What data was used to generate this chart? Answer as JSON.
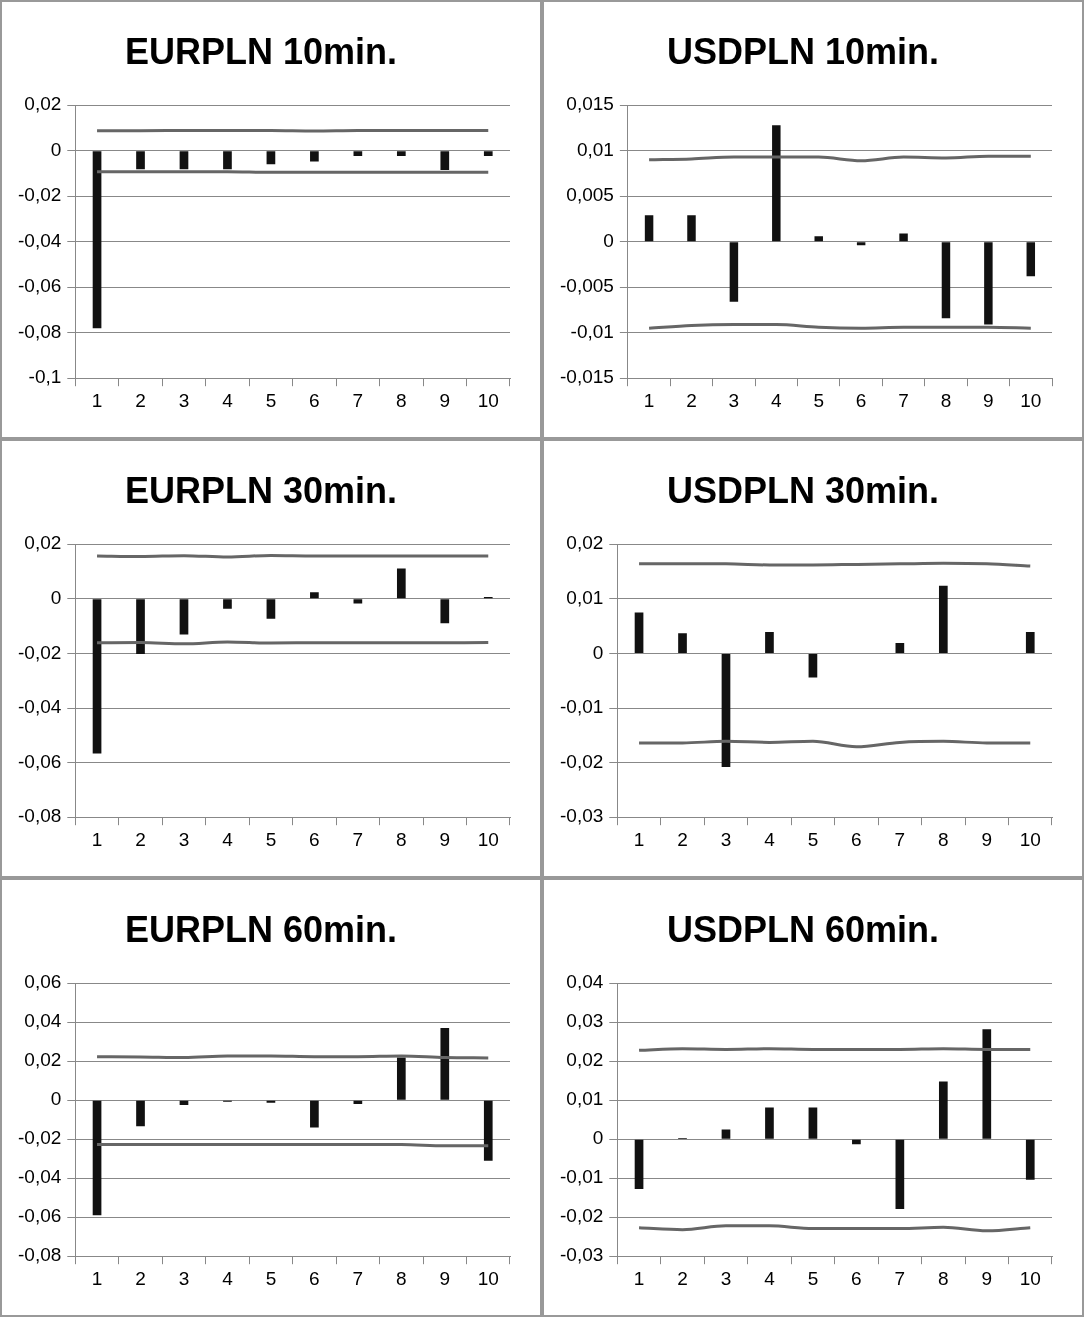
{
  "chart_data": [
    {
      "type": "bar",
      "title": "EURPLN 10min.",
      "categories": [
        "1",
        "2",
        "3",
        "4",
        "5",
        "6",
        "7",
        "8",
        "9",
        "10"
      ],
      "ylim": [
        -0.1,
        0.02
      ],
      "yticks": [
        {
          "value": -0.1,
          "label": "-0,1"
        },
        {
          "value": -0.08,
          "label": "-0,08"
        },
        {
          "value": -0.06,
          "label": "-0,06"
        },
        {
          "value": -0.04,
          "label": "-0,04"
        },
        {
          "value": -0.02,
          "label": "-0,02"
        },
        {
          "value": 0,
          "label": "0"
        },
        {
          "value": 0.02,
          "label": "0,02"
        }
      ],
      "grid": "y",
      "legend": false,
      "series": [
        {
          "color": "#111111",
          "values": [
            -0.078,
            -0.0082,
            -0.0082,
            -0.0082,
            -0.006,
            -0.0048,
            -0.0023,
            -0.0023,
            -0.0085,
            -0.0023
          ]
        },
        {
          "type": "line",
          "color": "#666666",
          "values": [
            0.0088,
            0.0088,
            0.0089,
            0.0089,
            0.0089,
            0.0087,
            0.0089,
            0.0089,
            0.0089,
            0.0089
          ]
        },
        {
          "type": "line",
          "color": "#666666",
          "values": [
            -0.0093,
            -0.0093,
            -0.0093,
            -0.0093,
            -0.0095,
            -0.0095,
            -0.0095,
            -0.0095,
            -0.0095,
            -0.0095
          ]
        }
      ]
    },
    {
      "type": "bar",
      "title": "USDPLN 10min.",
      "categories": [
        "1",
        "2",
        "3",
        "4",
        "5",
        "6",
        "7",
        "8",
        "9",
        "10"
      ],
      "ylim": [
        -0.015,
        0.015
      ],
      "yticks": [
        {
          "value": -0.015,
          "label": "-0,015"
        },
        {
          "value": -0.01,
          "label": "-0,01"
        },
        {
          "value": -0.005,
          "label": "-0,005"
        },
        {
          "value": 0,
          "label": "0"
        },
        {
          "value": 0.005,
          "label": "0,005"
        },
        {
          "value": 0.01,
          "label": "0,01"
        },
        {
          "value": 0.015,
          "label": "0,015"
        }
      ],
      "grid": "y",
      "legend": false,
      "series": [
        {
          "color": "#111111",
          "values": [
            0.0029,
            0.0029,
            -0.0066,
            0.0128,
            0.0006,
            -0.0004,
            0.0009,
            -0.0084,
            -0.0091,
            -0.0038
          ]
        },
        {
          "type": "line",
          "color": "#666666",
          "values": [
            0.009,
            0.0091,
            0.0093,
            0.0093,
            0.0093,
            0.0089,
            0.0093,
            0.0092,
            0.0094,
            0.0094
          ]
        },
        {
          "type": "line",
          "color": "#666666",
          "values": [
            -0.0095,
            -0.0092,
            -0.0091,
            -0.0091,
            -0.0094,
            -0.0095,
            -0.0094,
            -0.0094,
            -0.0094,
            -0.0095
          ]
        }
      ]
    },
    {
      "type": "bar",
      "title": "EURPLN 30min.",
      "categories": [
        "1",
        "2",
        "3",
        "4",
        "5",
        "6",
        "7",
        "8",
        "9",
        "10"
      ],
      "ylim": [
        -0.08,
        0.02
      ],
      "yticks": [
        {
          "value": -0.08,
          "label": "-0,08"
        },
        {
          "value": -0.06,
          "label": "-0,06"
        },
        {
          "value": -0.04,
          "label": "-0,04"
        },
        {
          "value": -0.02,
          "label": "-0,02"
        },
        {
          "value": 0,
          "label": "0"
        },
        {
          "value": 0.02,
          "label": "0,02"
        }
      ],
      "grid": "y",
      "legend": false,
      "series": [
        {
          "color": "#111111",
          "values": [
            -0.0567,
            -0.0202,
            -0.0131,
            -0.0036,
            -0.0073,
            0.0024,
            -0.0017,
            0.0111,
            -0.009,
            0.0007
          ]
        },
        {
          "type": "line",
          "color": "#666666",
          "values": [
            0.0157,
            0.0155,
            0.0158,
            0.0153,
            0.0159,
            0.0157,
            0.0157,
            0.0157,
            0.0157,
            0.0157
          ]
        },
        {
          "type": "line",
          "color": "#666666",
          "values": [
            -0.0161,
            -0.016,
            -0.0165,
            -0.0158,
            -0.0162,
            -0.0161,
            -0.0161,
            -0.0161,
            -0.0161,
            -0.016
          ]
        }
      ]
    },
    {
      "type": "bar",
      "title": "USDPLN 30min.",
      "categories": [
        "1",
        "2",
        "3",
        "4",
        "5",
        "6",
        "7",
        "8",
        "9",
        "10"
      ],
      "ylim": [
        -0.03,
        0.02
      ],
      "yticks": [
        {
          "value": -0.03,
          "label": "-0,03"
        },
        {
          "value": -0.02,
          "label": "-0,02"
        },
        {
          "value": -0.01,
          "label": "-0,01"
        },
        {
          "value": 0,
          "label": "0"
        },
        {
          "value": 0.01,
          "label": "0,01"
        },
        {
          "value": 0.02,
          "label": "0,02"
        }
      ],
      "grid": "y",
      "legend": false,
      "series": [
        {
          "color": "#111111",
          "values": [
            0.0075,
            0.0037,
            -0.0208,
            0.0039,
            -0.0044,
            0,
            0.0019,
            0.0124,
            0,
            0.0039
          ]
        },
        {
          "type": "line",
          "color": "#666666",
          "values": [
            0.0164,
            0.0164,
            0.0164,
            0.0162,
            0.0162,
            0.0163,
            0.0164,
            0.0165,
            0.0164,
            0.016
          ]
        },
        {
          "type": "line",
          "color": "#666666",
          "values": [
            -0.0164,
            -0.0164,
            -0.0161,
            -0.0163,
            -0.0161,
            -0.0171,
            -0.0163,
            -0.0161,
            -0.0164,
            -0.0164
          ]
        }
      ]
    },
    {
      "type": "bar",
      "title": "EURPLN 60min.",
      "categories": [
        "1",
        "2",
        "3",
        "4",
        "5",
        "6",
        "7",
        "8",
        "9",
        "10"
      ],
      "ylim": [
        -0.08,
        0.06
      ],
      "yticks": [
        {
          "value": -0.08,
          "label": "-0,08"
        },
        {
          "value": -0.06,
          "label": "-0,06"
        },
        {
          "value": -0.04,
          "label": "-0,04"
        },
        {
          "value": -0.02,
          "label": "-0,02"
        },
        {
          "value": 0,
          "label": "0"
        },
        {
          "value": 0.02,
          "label": "0,02"
        },
        {
          "value": 0.04,
          "label": "0,04"
        },
        {
          "value": 0.06,
          "label": "0,06"
        }
      ],
      "grid": "y",
      "legend": false,
      "series": [
        {
          "color": "#111111",
          "values": [
            -0.059,
            -0.0133,
            -0.0025,
            -0.0008,
            -0.0013,
            -0.014,
            -0.0019,
            0.0219,
            0.037,
            -0.031
          ]
        },
        {
          "type": "line",
          "color": "#666666",
          "values": [
            0.0223,
            0.0222,
            0.0219,
            0.0227,
            0.0227,
            0.0223,
            0.0223,
            0.0227,
            0.0219,
            0.0217
          ]
        },
        {
          "type": "line",
          "color": "#666666",
          "values": [
            -0.0227,
            -0.0227,
            -0.0227,
            -0.0227,
            -0.0227,
            -0.0227,
            -0.0227,
            -0.0227,
            -0.0234,
            -0.0234
          ]
        }
      ]
    },
    {
      "type": "bar",
      "title": "USDPLN 60min.",
      "categories": [
        "1",
        "2",
        "3",
        "4",
        "5",
        "6",
        "7",
        "8",
        "9",
        "10"
      ],
      "ylim": [
        -0.03,
        0.04
      ],
      "yticks": [
        {
          "value": -0.03,
          "label": "-0,03"
        },
        {
          "value": -0.02,
          "label": "-0,02"
        },
        {
          "value": -0.01,
          "label": "-0,01"
        },
        {
          "value": 0,
          "label": "0"
        },
        {
          "value": 0.01,
          "label": "0,01"
        },
        {
          "value": 0.02,
          "label": "0,02"
        },
        {
          "value": 0.03,
          "label": "0,03"
        },
        {
          "value": 0.04,
          "label": "0,04"
        }
      ],
      "grid": "y",
      "legend": false,
      "series": [
        {
          "color": "#111111",
          "values": [
            -0.0128,
            0.0003,
            0.0025,
            0.0081,
            0.0081,
            -0.0013,
            -0.0179,
            0.0148,
            0.0282,
            -0.0104
          ]
        },
        {
          "type": "line",
          "color": "#666666",
          "values": [
            0.0228,
            0.0232,
            0.023,
            0.0232,
            0.023,
            0.023,
            0.023,
            0.0232,
            0.023,
            0.023
          ]
        },
        {
          "type": "line",
          "color": "#666666",
          "values": [
            -0.0227,
            -0.0232,
            -0.0222,
            -0.0222,
            -0.0229,
            -0.0229,
            -0.0229,
            -0.0226,
            -0.0235,
            -0.0227
          ]
        }
      ]
    }
  ]
}
